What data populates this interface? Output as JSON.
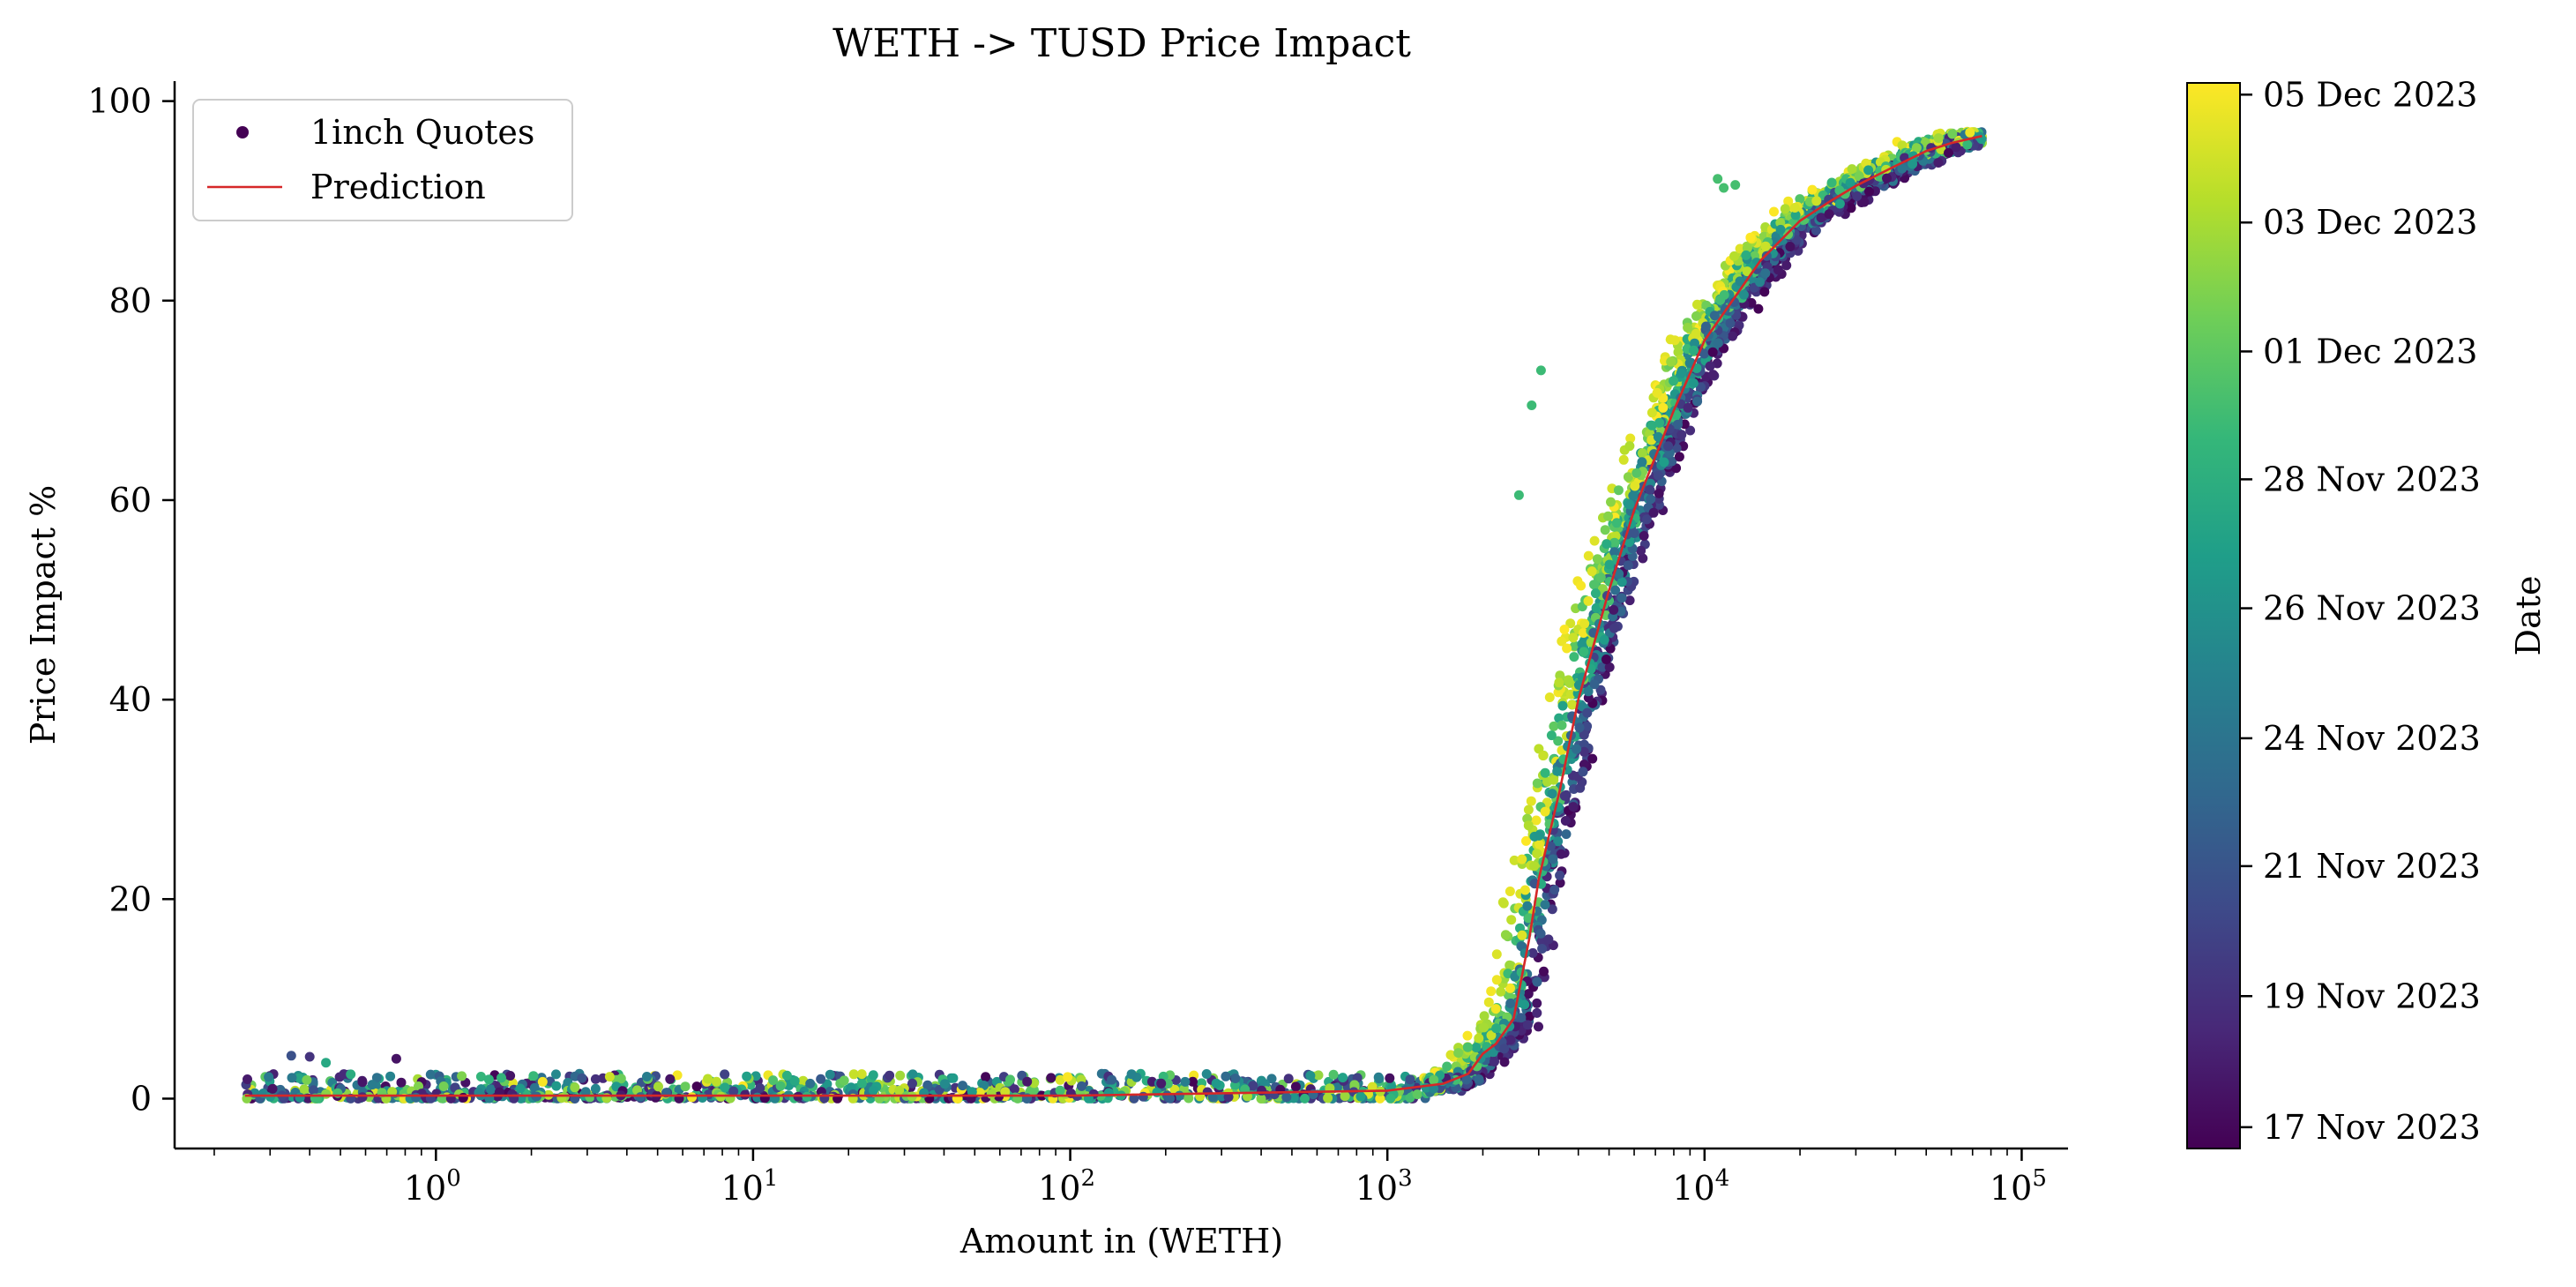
{
  "chart_data": {
    "type": "scatter",
    "title": "WETH -> TUSD Price Impact",
    "xlabel": "Amount in (WETH)",
    "ylabel": "Price Impact %",
    "xscale": "log",
    "xlim": [
      0.15,
      140000
    ],
    "ylim": [
      -5,
      102
    ],
    "x_ticks": [
      {
        "base": "10",
        "exp": "0",
        "value": 1
      },
      {
        "base": "10",
        "exp": "1",
        "value": 10
      },
      {
        "base": "10",
        "exp": "2",
        "value": 100
      },
      {
        "base": "10",
        "exp": "3",
        "value": 1000
      },
      {
        "base": "10",
        "exp": "4",
        "value": 10000
      },
      {
        "base": "10",
        "exp": "5",
        "value": 100000
      }
    ],
    "y_ticks": [
      {
        "label": "0",
        "value": 0
      },
      {
        "label": "20",
        "value": 20
      },
      {
        "label": "40",
        "value": 40
      },
      {
        "label": "60",
        "value": 60
      },
      {
        "label": "80",
        "value": 80
      },
      {
        "label": "100",
        "value": 100
      }
    ],
    "grid": false,
    "legend": {
      "position": "top-left",
      "entries": [
        {
          "label": "1inch Quotes",
          "marker": "dot",
          "color": "#440154"
        },
        {
          "label": "Prediction",
          "marker": "line",
          "color": "#d62728"
        }
      ]
    },
    "colorbar": {
      "label": "Date",
      "colormap": "viridis",
      "colors": [
        "#440154",
        "#482878",
        "#3e4989",
        "#31688e",
        "#26828e",
        "#1f9e89",
        "#35b779",
        "#6ece58",
        "#b5de2b",
        "#fde725"
      ],
      "ticks": [
        {
          "label": "17 Nov 2023",
          "fraction": 0.02
        },
        {
          "label": "19 Nov 2023",
          "fraction": 0.143
        },
        {
          "label": "21 Nov 2023",
          "fraction": 0.265
        },
        {
          "label": "24 Nov 2023",
          "fraction": 0.385
        },
        {
          "label": "26 Nov 2023",
          "fraction": 0.507
        },
        {
          "label": "28 Nov 2023",
          "fraction": 0.628
        },
        {
          "label": "01 Dec 2023",
          "fraction": 0.748
        },
        {
          "label": "03 Dec 2023",
          "fraction": 0.869
        },
        {
          "label": "05 Dec 2023",
          "fraction": 0.989
        }
      ]
    },
    "prediction_line": {
      "name": "Prediction",
      "color": "#d62728",
      "x": [
        0.25,
        1,
        10,
        100,
        1000,
        1500,
        1800,
        2000,
        2200,
        2500,
        2800,
        3000,
        3500,
        4000,
        5000,
        6000,
        8000,
        10000,
        15000,
        20000,
        25000,
        30000,
        40000,
        50000,
        60000,
        75000
      ],
      "y": [
        0.3,
        0.3,
        0.3,
        0.3,
        0.8,
        1.5,
        2.5,
        4.5,
        5.5,
        8,
        16,
        22,
        31,
        40,
        51,
        59,
        69,
        76,
        84,
        88,
        90,
        91.5,
        93.5,
        95,
        95.8,
        96.5
      ]
    },
    "scatter_series": {
      "name": "1inch Quotes",
      "low_region_x": [
        0.25,
        1400
      ],
      "low_region_y": [
        0,
        2.5
      ],
      "curve_x": [
        0.25,
        1,
        10,
        100,
        1000,
        1500,
        1800,
        2000,
        2200,
        2500,
        2800,
        3000,
        3500,
        4000,
        5000,
        6000,
        8000,
        10000,
        15000,
        20000,
        25000,
        30000,
        40000,
        50000,
        60000,
        75000
      ],
      "curve_y": [
        0.3,
        0.3,
        0.3,
        0.3,
        0.8,
        1.5,
        2.5,
        4.5,
        5.5,
        8,
        16,
        22,
        31,
        40,
        51,
        59,
        69,
        76,
        84,
        88,
        90,
        91.5,
        93.5,
        95,
        95.8,
        96.5
      ],
      "outliers": [
        {
          "x": 0.75,
          "y": 4.0,
          "c": 0.05
        },
        {
          "x": 0.35,
          "y": 4.3,
          "c": 0.25
        },
        {
          "x": 0.4,
          "y": 4.2,
          "c": 0.15
        },
        {
          "x": 0.45,
          "y": 3.6,
          "c": 0.6
        },
        {
          "x": 2600,
          "y": 60.5,
          "c": 0.68
        },
        {
          "x": 2850,
          "y": 69.5,
          "c": 0.68
        },
        {
          "x": 3050,
          "y": 73,
          "c": 0.68
        },
        {
          "x": 11000,
          "y": 92.2,
          "c": 0.7
        },
        {
          "x": 11500,
          "y": 91.3,
          "c": 0.7
        },
        {
          "x": 12500,
          "y": 91.6,
          "c": 0.7
        }
      ]
    }
  }
}
